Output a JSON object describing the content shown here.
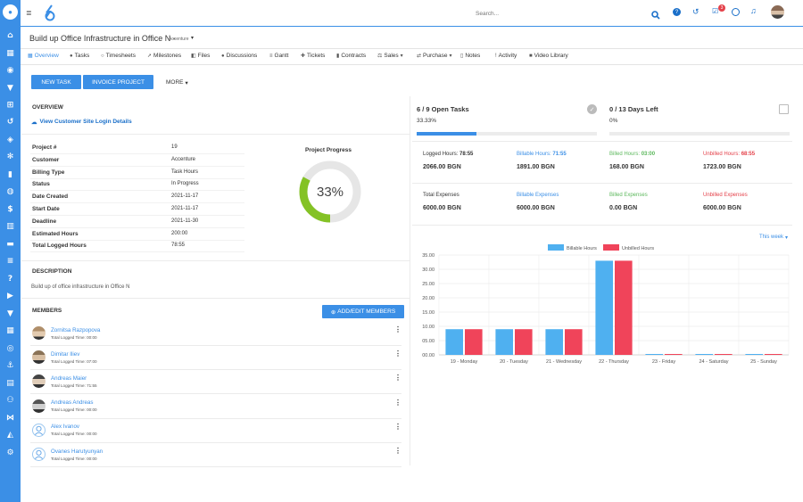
{
  "topbar": {
    "search_placeholder": "Search...",
    "notification_count": "3"
  },
  "project": {
    "title": "Build up Office Infrastructure in Office N -",
    "client": "Accenture"
  },
  "tabs": [
    "Overview",
    "Tasks",
    "Timesheets",
    "Milestones",
    "Files",
    "Discussions",
    "Gantt",
    "Tickets",
    "Contracts",
    "Sales",
    "Purchase",
    "Notes",
    "Activity",
    "Video Library"
  ],
  "actions": {
    "new_task": "NEW TASK",
    "invoice_project": "INVOICE PROJECT",
    "more": "MORE"
  },
  "overview": {
    "heading": "OVERVIEW",
    "login_link": "View Customer Site Login Details",
    "fields": [
      {
        "label": "Project #",
        "value": "19"
      },
      {
        "label": "Customer",
        "value": "Accenture"
      },
      {
        "label": "Billing Type",
        "value": "Task Hours"
      },
      {
        "label": "Status",
        "value": "In Progress"
      },
      {
        "label": "Date Created",
        "value": "2021-11-17"
      },
      {
        "label": "Start Date",
        "value": "2021-11-17"
      },
      {
        "label": "Deadline",
        "value": "2021-11-30"
      },
      {
        "label": "Estimated Hours",
        "value": "200:00"
      },
      {
        "label": "Total Logged Hours",
        "value": "78:55"
      }
    ],
    "progress_title": "Project Progress",
    "progress_percent": 33,
    "progress_label": "33%"
  },
  "description": {
    "heading": "DESCRIPTION",
    "text": "Build up of office infrastructure in Office N"
  },
  "members": {
    "heading": "MEMBERS",
    "add_button": "ADD/EDIT MEMBERS",
    "list": [
      {
        "name": "Zornitsa Razpopova",
        "time": "Total Logged Time: 00:00"
      },
      {
        "name": "Dimitar Iliev",
        "time": "Total Logged Time: 07:00"
      },
      {
        "name": "Andreas Maier",
        "time": "Total Logged Time: 71:55"
      },
      {
        "name": "Andreas Andreas",
        "time": "Total Logged Time: 00:00"
      },
      {
        "name": "Alex Ivanov",
        "time": "Total Logged Time: 00:00"
      },
      {
        "name": "Ovanes Harutyunyan",
        "time": "Total Logged Time: 00:00"
      }
    ]
  },
  "stats": {
    "open_tasks": "6 / 9 Open Tasks",
    "open_tasks_pct": "33.33%",
    "open_tasks_fraction": 0.3333,
    "days_left": "0 / 13 Days Left",
    "days_left_pct": "0%",
    "hours": [
      {
        "label": "Logged Hours: ",
        "hours": "78:55",
        "amount": "2066.00 BGN",
        "color": "#333333"
      },
      {
        "label": "Billable Hours: ",
        "hours": "71:55",
        "amount": "1891.00 BGN",
        "color": "#3b8fe6"
      },
      {
        "label": "Billed Hours: ",
        "hours": "03:00",
        "amount": "168.00 BGN",
        "color": "#5cb85c"
      },
      {
        "label": "Unbilled Hours: ",
        "hours": "68:55",
        "amount": "1723.00 BGN",
        "color": "#e4414a"
      }
    ],
    "expenses": [
      {
        "label": "Total Expenses",
        "amount": "6000.00 BGN",
        "color": "#333333"
      },
      {
        "label": "Billable Expenses",
        "amount": "6000.00 BGN",
        "color": "#3b8fe6"
      },
      {
        "label": "Billed Expenses",
        "amount": "0.00 BGN",
        "color": "#5cb85c"
      },
      {
        "label": "Unbilled Expenses",
        "amount": "6000.00 BGN",
        "color": "#e4414a"
      }
    ]
  },
  "chart_data": {
    "type": "bar",
    "period_selector": "This week",
    "categories": [
      "19 - Monday",
      "20 - Tuesday",
      "21 - Wednesday",
      "22 - Thursday",
      "23 - Friday",
      "24 - Saturday",
      "25 - Sunday"
    ],
    "series": [
      {
        "name": "Billable Hours",
        "color": "#4fb0f0",
        "values": [
          9,
          9,
          9,
          33,
          0,
          0,
          0
        ]
      },
      {
        "name": "Unbilled Hours",
        "color": "#f0445a",
        "values": [
          9,
          9,
          9,
          33,
          0,
          0,
          0
        ]
      }
    ],
    "yticks": [
      "35.00",
      "30.00",
      "25.00",
      "20.00",
      "15.00",
      "10.00",
      "05.00",
      "00.00"
    ],
    "ylim": [
      0,
      35
    ],
    "legend_position": "top",
    "grid": true
  }
}
